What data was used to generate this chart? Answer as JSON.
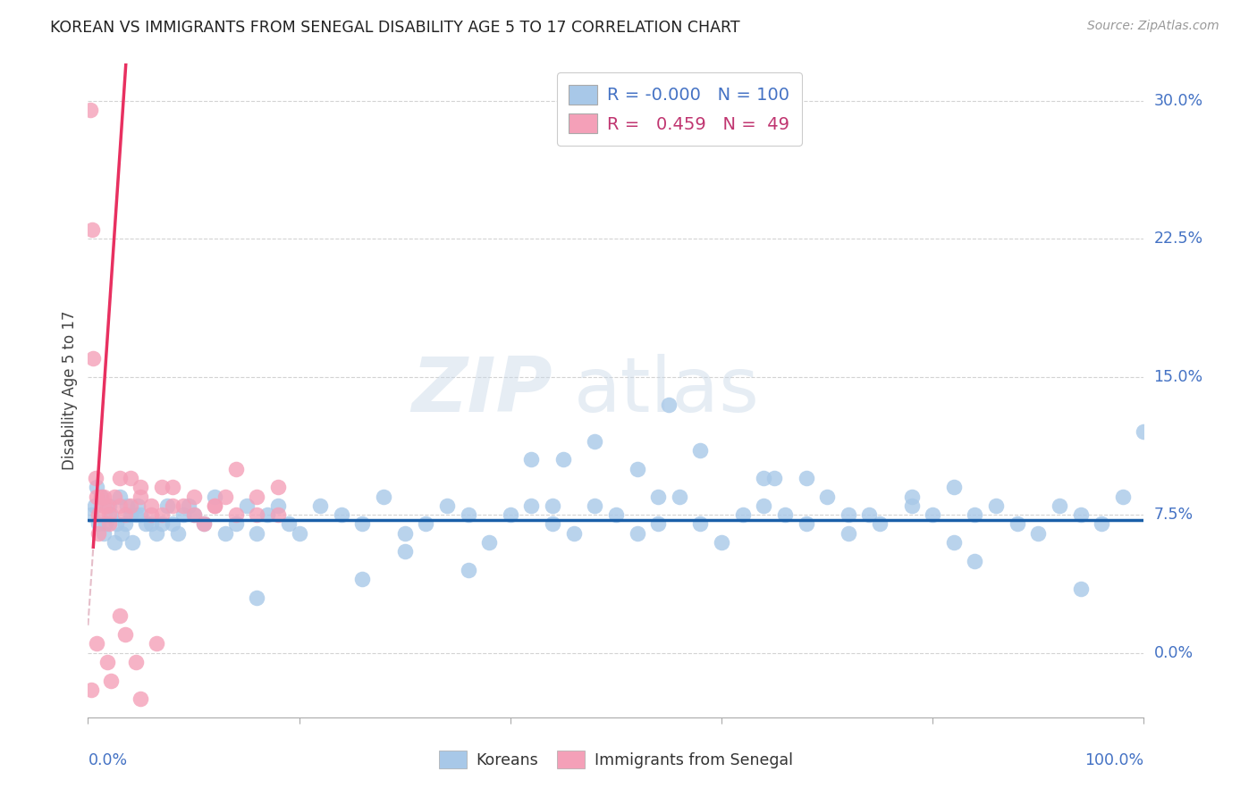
{
  "title": "KOREAN VS IMMIGRANTS FROM SENEGAL DISABILITY AGE 5 TO 17 CORRELATION CHART",
  "source": "Source: ZipAtlas.com",
  "ylabel": "Disability Age 5 to 17",
  "xlim": [
    0,
    100
  ],
  "ylim": [
    -3.5,
    32
  ],
  "legend_r_korean": "-0.000",
  "legend_n_korean": "100",
  "legend_r_senegal": "0.459",
  "legend_n_senegal": "49",
  "korean_color": "#a8c8e8",
  "senegal_color": "#f4a0b8",
  "korean_line_color": "#1a5fa8",
  "senegal_line_color": "#e83060",
  "senegal_dashed_color": "#dda8b8",
  "watermark_zip": "ZIP",
  "watermark_atlas": "atlas",
  "background_color": "#ffffff",
  "grid_color": "#c8c8c8",
  "title_color": "#222222",
  "axis_label_color": "#4472c4",
  "ytick_values": [
    0.0,
    7.5,
    15.0,
    22.5,
    30.0
  ],
  "ytick_labels": [
    "0.0%",
    "7.5%",
    "15.0%",
    "22.5%",
    "30.0%"
  ],
  "korean_line_y": 7.2,
  "senegal_slope": 8.5,
  "senegal_intercept": 1.5,
  "senegal_solid_x_start": 0.5,
  "senegal_solid_x_end": 4.5,
  "senegal_dash_x_start": 0.0,
  "senegal_dash_x_end": 20.0,
  "korean_x": [
    0.3,
    0.6,
    0.8,
    1.0,
    1.2,
    1.5,
    1.7,
    2.0,
    2.2,
    2.5,
    2.7,
    3.0,
    3.2,
    3.5,
    3.7,
    4.0,
    4.2,
    4.5,
    4.7,
    5.0,
    5.5,
    6.0,
    6.5,
    7.0,
    7.5,
    8.0,
    8.5,
    9.0,
    9.5,
    10.0,
    11.0,
    12.0,
    13.0,
    14.0,
    15.0,
    16.0,
    17.0,
    18.0,
    19.0,
    20.0,
    22.0,
    24.0,
    26.0,
    28.0,
    30.0,
    32.0,
    34.0,
    36.0,
    38.0,
    40.0,
    42.0,
    44.0,
    46.0,
    48.0,
    50.0,
    52.0,
    54.0,
    56.0,
    58.0,
    60.0,
    62.0,
    64.0,
    66.0,
    68.0,
    70.0,
    72.0,
    75.0,
    78.0,
    80.0,
    82.0,
    84.0,
    86.0,
    88.0,
    90.0,
    92.0,
    94.0,
    96.0,
    98.0,
    100.0,
    45.0,
    55.0,
    65.0,
    48.0,
    58.0,
    68.0,
    78.0,
    42.0,
    52.0,
    72.0,
    82.0,
    54.0,
    64.0,
    74.0,
    84.0,
    94.0,
    36.0,
    26.0,
    16.0,
    30.0,
    44.0
  ],
  "korean_y": [
    7.5,
    8.0,
    9.0,
    7.0,
    8.5,
    6.5,
    7.0,
    8.0,
    7.5,
    6.0,
    7.0,
    8.5,
    6.5,
    7.0,
    8.0,
    7.5,
    6.0,
    7.5,
    8.0,
    7.5,
    7.0,
    7.0,
    6.5,
    7.0,
    8.0,
    7.0,
    6.5,
    7.5,
    8.0,
    7.5,
    7.0,
    8.5,
    6.5,
    7.0,
    8.0,
    6.5,
    7.5,
    8.0,
    7.0,
    6.5,
    8.0,
    7.5,
    7.0,
    8.5,
    6.5,
    7.0,
    8.0,
    7.5,
    6.0,
    7.5,
    8.0,
    7.0,
    6.5,
    8.0,
    7.5,
    6.5,
    7.0,
    8.5,
    7.0,
    6.0,
    7.5,
    8.0,
    7.5,
    7.0,
    8.5,
    6.5,
    7.0,
    8.0,
    7.5,
    6.0,
    7.5,
    8.0,
    7.0,
    6.5,
    8.0,
    7.5,
    7.0,
    8.5,
    12.0,
    10.5,
    13.5,
    9.5,
    11.5,
    11.0,
    9.5,
    8.5,
    10.5,
    10.0,
    7.5,
    9.0,
    8.5,
    9.5,
    7.5,
    5.0,
    3.5,
    4.5,
    4.0,
    3.0,
    5.5,
    8.0
  ],
  "senegal_x": [
    0.2,
    0.4,
    0.5,
    0.7,
    0.8,
    1.0,
    1.2,
    1.5,
    1.8,
    2.0,
    2.5,
    3.0,
    3.5,
    4.0,
    5.0,
    6.0,
    7.0,
    8.0,
    10.0,
    12.0,
    14.0,
    16.0,
    18.0,
    1.0,
    1.5,
    2.0,
    3.0,
    4.0,
    5.0,
    6.0,
    7.0,
    8.0,
    9.0,
    10.0,
    11.0,
    12.0,
    13.0,
    14.0,
    16.0,
    18.0,
    0.8,
    2.2,
    3.5,
    4.5,
    0.3,
    1.8,
    3.0,
    5.0,
    6.5
  ],
  "senegal_y": [
    29.5,
    23.0,
    16.0,
    9.5,
    8.5,
    7.5,
    8.5,
    8.0,
    8.0,
    7.0,
    8.5,
    8.0,
    7.5,
    9.5,
    9.0,
    7.5,
    9.0,
    8.0,
    7.5,
    8.0,
    10.0,
    8.5,
    9.0,
    6.5,
    8.5,
    7.5,
    9.5,
    8.0,
    8.5,
    8.0,
    7.5,
    9.0,
    8.0,
    8.5,
    7.0,
    8.0,
    8.5,
    7.5,
    7.5,
    7.5,
    0.5,
    -1.5,
    1.0,
    -0.5,
    -2.0,
    -0.5,
    2.0,
    -2.5,
    0.5
  ]
}
